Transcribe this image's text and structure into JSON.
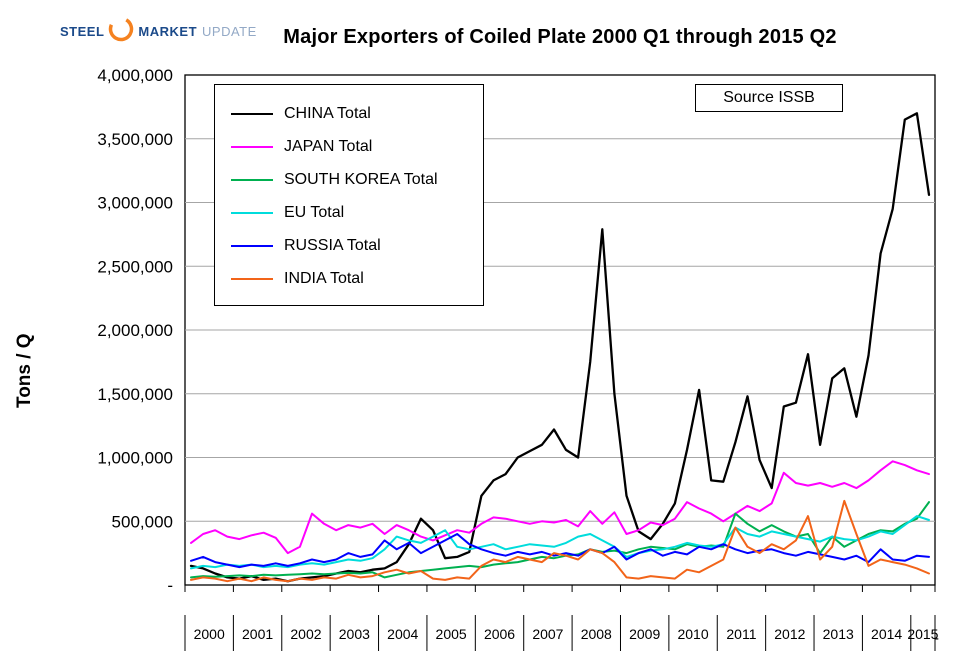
{
  "logo": {
    "steel": "STEEL",
    "market": "MARKET",
    "update": "UPDATE",
    "arc_color": "#F58220"
  },
  "title": "Major Exporters of Coiled Plate 2000 Q1 through 2015 Q2",
  "source_label": "Source ISSB",
  "y_axis_title": "Tons / Q",
  "bottom_right_dash": "-",
  "chart_data": {
    "type": "line",
    "x_start": "2000 Q1",
    "x_end": "2015 Q2",
    "x_unit": "quarter",
    "years": [
      "2000",
      "2001",
      "2002",
      "2003",
      "2004",
      "2005",
      "2006",
      "2007",
      "2008",
      "2009",
      "2010",
      "2011",
      "2012",
      "2013",
      "2014",
      "2015"
    ],
    "quarters_per_year": 4,
    "last_year_quarters": 2,
    "ylim": [
      0,
      4000000
    ],
    "y_tick_step": 500000,
    "y_tick_labels": [
      "4,000,000",
      "3,500,000",
      "3,000,000",
      "2,500,000",
      "2,000,000",
      "1,500,000",
      "1,000,000",
      "500,000",
      "-"
    ],
    "grid": true,
    "grid_color": "#A6A6A6",
    "legend_position": "top-left-inside",
    "series": [
      {
        "name": "CHINA Total",
        "color": "#000000",
        "values": [
          150000,
          130000,
          90000,
          60000,
          50000,
          70000,
          40000,
          50000,
          30000,
          50000,
          60000,
          70000,
          90000,
          110000,
          100000,
          120000,
          130000,
          180000,
          320000,
          520000,
          430000,
          210000,
          220000,
          260000,
          700000,
          820000,
          870000,
          1000000,
          1050000,
          1100000,
          1220000,
          1060000,
          1000000,
          1750000,
          2790000,
          1500000,
          700000,
          420000,
          360000,
          480000,
          640000,
          1060000,
          1530000,
          820000,
          810000,
          1120000,
          1480000,
          980000,
          760000,
          1400000,
          1430000,
          1810000,
          1100000,
          1620000,
          1700000,
          1320000,
          1800000,
          2600000,
          2950000,
          3650000,
          3700000,
          3060000
        ]
      },
      {
        "name": "JAPAN Total",
        "color": "#FF00FF",
        "values": [
          330000,
          400000,
          430000,
          380000,
          360000,
          390000,
          410000,
          370000,
          250000,
          300000,
          560000,
          480000,
          430000,
          470000,
          450000,
          480000,
          400000,
          470000,
          430000,
          380000,
          350000,
          390000,
          430000,
          410000,
          480000,
          530000,
          520000,
          500000,
          480000,
          500000,
          490000,
          510000,
          460000,
          580000,
          480000,
          570000,
          400000,
          430000,
          490000,
          470000,
          520000,
          650000,
          600000,
          560000,
          500000,
          560000,
          620000,
          580000,
          640000,
          880000,
          800000,
          780000,
          800000,
          770000,
          800000,
          760000,
          820000,
          900000,
          970000,
          940000,
          900000,
          870000
        ]
      },
      {
        "name": "SOUTH KOREA Total",
        "color": "#00B050",
        "values": [
          60000,
          70000,
          65000,
          70000,
          75000,
          70000,
          80000,
          75000,
          80000,
          85000,
          90000,
          85000,
          90000,
          95000,
          90000,
          100000,
          60000,
          80000,
          100000,
          110000,
          120000,
          130000,
          140000,
          150000,
          140000,
          160000,
          170000,
          180000,
          200000,
          220000,
          210000,
          230000,
          240000,
          280000,
          260000,
          270000,
          250000,
          280000,
          300000,
          290000,
          280000,
          320000,
          300000,
          310000,
          300000,
          560000,
          480000,
          420000,
          470000,
          420000,
          380000,
          400000,
          250000,
          380000,
          300000,
          350000,
          400000,
          430000,
          420000,
          480000,
          520000,
          650000
        ]
      },
      {
        "name": "EU Total",
        "color": "#00DCDC",
        "values": [
          130000,
          150000,
          140000,
          160000,
          150000,
          160000,
          140000,
          150000,
          140000,
          160000,
          170000,
          160000,
          180000,
          200000,
          190000,
          210000,
          280000,
          380000,
          350000,
          330000,
          380000,
          430000,
          300000,
          280000,
          300000,
          320000,
          280000,
          300000,
          320000,
          310000,
          300000,
          330000,
          380000,
          400000,
          350000,
          300000,
          220000,
          250000,
          270000,
          280000,
          300000,
          330000,
          310000,
          300000,
          320000,
          450000,
          400000,
          380000,
          420000,
          400000,
          380000,
          360000,
          340000,
          380000,
          360000,
          350000,
          380000,
          420000,
          400000,
          470000,
          540000,
          510000
        ]
      },
      {
        "name": "RUSSIA Total",
        "color": "#0000FF",
        "values": [
          190000,
          220000,
          180000,
          160000,
          140000,
          160000,
          150000,
          170000,
          150000,
          170000,
          200000,
          180000,
          200000,
          250000,
          220000,
          240000,
          350000,
          280000,
          330000,
          250000,
          300000,
          350000,
          400000,
          320000,
          280000,
          250000,
          230000,
          260000,
          240000,
          260000,
          230000,
          250000,
          230000,
          280000,
          250000,
          300000,
          200000,
          250000,
          280000,
          230000,
          260000,
          240000,
          300000,
          280000,
          320000,
          280000,
          250000,
          270000,
          280000,
          250000,
          230000,
          260000,
          240000,
          220000,
          200000,
          230000,
          180000,
          280000,
          200000,
          190000,
          230000,
          220000
        ]
      },
      {
        "name": "INDIA Total",
        "color": "#F26419",
        "values": [
          40000,
          60000,
          50000,
          30000,
          50000,
          30000,
          60000,
          40000,
          30000,
          50000,
          40000,
          60000,
          50000,
          80000,
          60000,
          70000,
          100000,
          120000,
          90000,
          110000,
          50000,
          40000,
          60000,
          50000,
          150000,
          200000,
          180000,
          220000,
          200000,
          180000,
          250000,
          230000,
          200000,
          280000,
          250000,
          180000,
          60000,
          50000,
          70000,
          60000,
          50000,
          120000,
          100000,
          150000,
          200000,
          450000,
          300000,
          250000,
          320000,
          280000,
          350000,
          540000,
          200000,
          300000,
          660000,
          400000,
          150000,
          200000,
          180000,
          160000,
          130000,
          90000
        ]
      }
    ]
  }
}
